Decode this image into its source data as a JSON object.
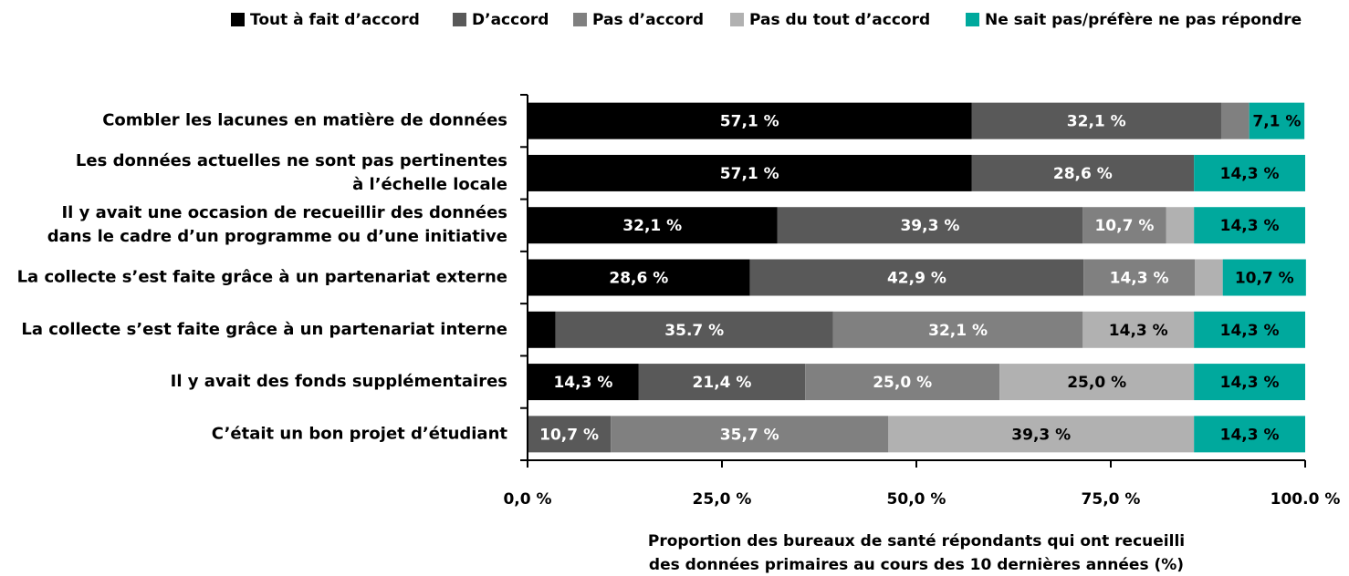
{
  "chart_data": {
    "type": "stacked_barh",
    "categories": [
      "Combler les lacunes en matière de données",
      "Les données actuelles ne sont pas pertinentes\nà l’échelle locale",
      "Il y avait une occasion de recueillir des données\ndans le cadre d’un programme ou d’une initiative",
      "La collecte s’est faite grâce à un partenariat externe",
      "La collecte s’est faite grâce à un partenariat interne",
      "Il y avait des fonds supplémentaires",
      "C’était un bon projet d’étudiant"
    ],
    "series": [
      {
        "name": "Tout à fait d’accord",
        "color": "#000000",
        "label_color": "#ffffff",
        "values": [
          57.1,
          57.1,
          32.1,
          28.6,
          3.6,
          14.3,
          0
        ],
        "value_labels": [
          "57,1 %",
          "57,1 %",
          "32,1 %",
          "28,6 %",
          null,
          "14,3 %",
          null
        ]
      },
      {
        "name": "D’accord",
        "color": "#595959",
        "label_color": "#ffffff",
        "values": [
          32.1,
          28.6,
          39.3,
          42.9,
          35.7,
          21.4,
          10.7
        ],
        "value_labels": [
          "32,1 %",
          "28,6 %",
          "39,3 %",
          "42,9 %",
          "35.7 %",
          "21,4 %",
          "10,7 %"
        ]
      },
      {
        "name": "Pas d’accord",
        "color": "#808080",
        "label_color": "#ffffff",
        "values": [
          3.6,
          0,
          10.7,
          14.3,
          32.1,
          25.0,
          35.7
        ],
        "value_labels": [
          null,
          null,
          "10,7 %",
          "14,3 %",
          "32,1 %",
          "25,0 %",
          "35,7 %"
        ]
      },
      {
        "name": "Pas du tout d’accord",
        "color": "#b1b1b1",
        "label_color": "#000000",
        "values": [
          0,
          0,
          3.6,
          3.6,
          14.3,
          25.0,
          39.3
        ],
        "value_labels": [
          null,
          null,
          null,
          null,
          "14,3 %",
          "25,0 %",
          "39,3 %"
        ]
      },
      {
        "name": "Ne sait pas/préfère ne pas répondre",
        "color": "#00a99d",
        "label_color": "#000000",
        "values": [
          7.1,
          14.3,
          14.3,
          10.7,
          14.3,
          14.3,
          14.3
        ],
        "value_labels": [
          "7,1 %",
          "14,3 %",
          "14,3 %",
          "10,7 %",
          "14,3 %",
          "14,3 %",
          "14,3 %"
        ]
      }
    ],
    "xlim": [
      0,
      100
    ],
    "xticks": [
      {
        "value": 0,
        "label": "0,0 %"
      },
      {
        "value": 25,
        "label": "25,0 %"
      },
      {
        "value": 50,
        "label": "50,0 %"
      },
      {
        "value": 75,
        "label": "75,0 %"
      },
      {
        "value": 100,
        "label": "100.0 %"
      }
    ],
    "x_label": "Proportion des bureaux de santé répondants qui ont recueilli\ndes données primaires au cours des 10 dernières années (%)",
    "legend": "top"
  }
}
